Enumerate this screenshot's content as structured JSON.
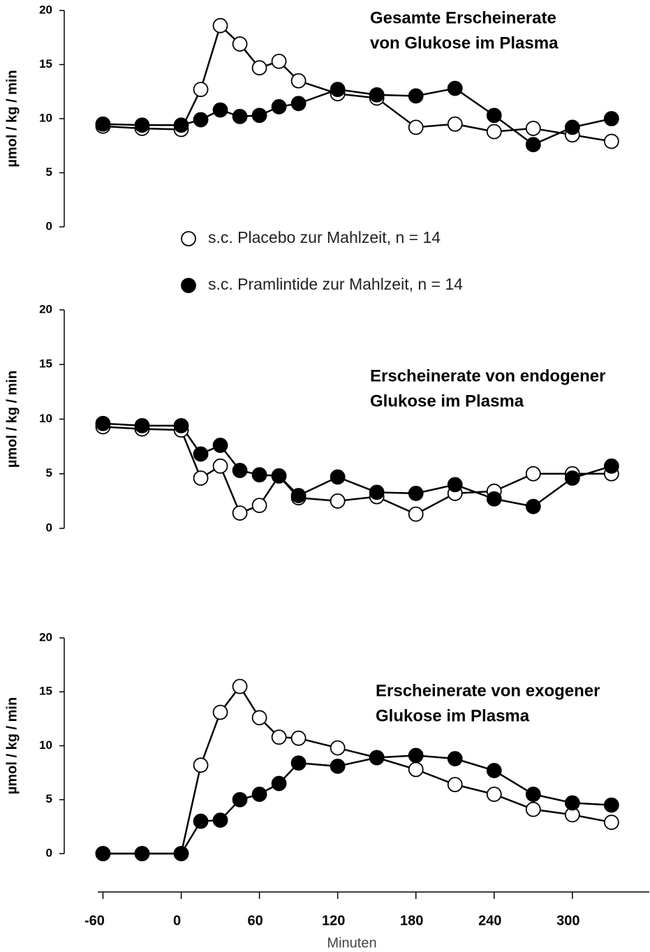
{
  "chart_data": [
    {
      "type": "line",
      "title": [
        "Gesamte Erscheinerate",
        "von Glukose im Plasma"
      ],
      "ylabel": "µmol / kg / min",
      "x": [
        -60,
        -30,
        0,
        15,
        30,
        45,
        60,
        75,
        90,
        120,
        150,
        180,
        210,
        240,
        270,
        300,
        330
      ],
      "series": [
        {
          "name": "s.c. Placebo zur Mahlzeit, n = 14",
          "color": "#000000",
          "marker_fill": "#ffffff",
          "values": [
            9.3,
            9.1,
            9.0,
            12.7,
            18.6,
            16.9,
            14.7,
            15.3,
            13.5,
            12.3,
            11.9,
            9.2,
            9.5,
            8.8,
            9.1,
            8.5,
            7.9
          ]
        },
        {
          "name": "s.c. Pramlintide zur Mahlzeit, n = 14",
          "color": "#000000",
          "marker_fill": "#000000",
          "values": [
            9.5,
            9.4,
            9.4,
            9.9,
            10.8,
            10.2,
            10.3,
            11.1,
            11.4,
            12.7,
            12.2,
            12.1,
            12.8,
            10.3,
            7.6,
            9.2,
            10.0
          ]
        }
      ],
      "ylim": [
        0,
        20
      ],
      "yticks": [
        0,
        5,
        10,
        15,
        20
      ]
    },
    {
      "type": "line",
      "title": [
        "Erscheinerate von endogener",
        "Glukose im Plasma"
      ],
      "ylabel": "µmol / kg / min",
      "x": [
        -60,
        -30,
        0,
        15,
        30,
        45,
        60,
        75,
        90,
        120,
        150,
        180,
        210,
        240,
        270,
        300,
        330
      ],
      "series": [
        {
          "color": "#000000",
          "marker_fill": "#ffffff",
          "values": [
            9.3,
            9.1,
            9.0,
            4.6,
            5.7,
            1.4,
            2.1,
            4.8,
            2.8,
            2.5,
            2.9,
            1.3,
            3.2,
            3.4,
            5.0,
            5.0,
            5.0
          ]
        },
        {
          "color": "#000000",
          "marker_fill": "#000000",
          "values": [
            9.6,
            9.4,
            9.4,
            6.8,
            7.6,
            5.3,
            4.9,
            4.8,
            3.0,
            4.7,
            3.3,
            3.2,
            4.0,
            2.7,
            2.0,
            4.6,
            5.7
          ]
        }
      ],
      "ylim": [
        0,
        20
      ],
      "yticks": [
        0,
        5,
        10,
        15,
        20
      ]
    },
    {
      "type": "line",
      "title": [
        "Erscheinerate von exogener",
        "Glukose im Plasma"
      ],
      "ylabel": "µmol / kg / min",
      "xlabel": "Minuten",
      "x": [
        -60,
        -30,
        0,
        15,
        30,
        45,
        60,
        75,
        90,
        120,
        150,
        180,
        210,
        240,
        270,
        300,
        330
      ],
      "series": [
        {
          "color": "#000000",
          "marker_fill": "#ffffff",
          "values": [
            0,
            0,
            0,
            8.2,
            13.1,
            15.5,
            12.6,
            10.8,
            10.7,
            9.8,
            8.9,
            7.8,
            6.4,
            5.5,
            4.1,
            3.6,
            2.9
          ]
        },
        {
          "color": "#000000",
          "marker_fill": "#000000",
          "values": [
            0,
            0,
            0,
            3.0,
            3.1,
            5.0,
            5.5,
            6.5,
            8.4,
            8.1,
            8.9,
            9.1,
            8.8,
            7.7,
            5.5,
            4.7,
            4.5
          ]
        }
      ],
      "xlim": [
        -64,
        359
      ],
      "xticks": [
        -60,
        0,
        60,
        120,
        180,
        240,
        300
      ],
      "ylim": [
        0,
        20
      ],
      "yticks": [
        0,
        5,
        10,
        15,
        20
      ]
    }
  ]
}
